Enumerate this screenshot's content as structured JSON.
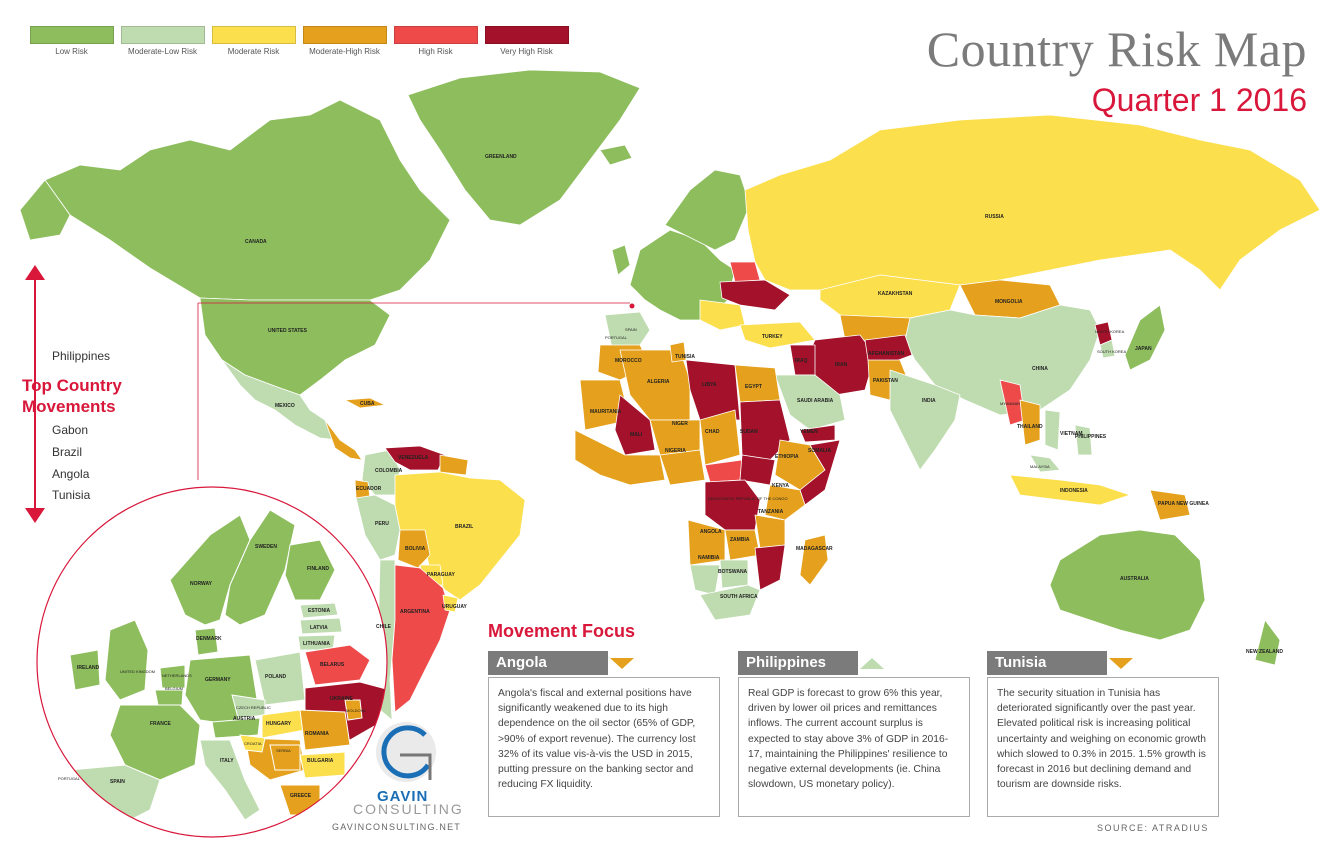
{
  "legend": [
    {
      "label": "Low Risk",
      "color": "#8dbd5d"
    },
    {
      "label": "Moderate-Low Risk",
      "color": "#bfdcb0"
    },
    {
      "label": "Moderate Risk",
      "color": "#fcdf4d"
    },
    {
      "label": "Moderate-High Risk",
      "color": "#e5a11d"
    },
    {
      "label": "High Risk",
      "color": "#ee4a4a"
    },
    {
      "label": "Very High Risk",
      "color": "#a3122a"
    }
  ],
  "title": "Country Risk Map",
  "subtitle": "Quarter 1  2016",
  "top_movements": {
    "title_line1": "Top Country",
    "title_line2": "Movements",
    "up": [
      "Philippines"
    ],
    "down": [
      "Gabon",
      "Brazil",
      "Angola",
      "Tunisia"
    ]
  },
  "movement_focus": {
    "title": "Movement Focus",
    "panels": [
      {
        "country": "Angola",
        "direction": "down",
        "text": "Angola's fiscal and external positions have significantly weakened due to its high dependence on the oil sector (65% of GDP, >90% of export revenue). The currency lost 32% of its value vis-à-vis the USD in 2015, putting pressure on the banking sector and reducing FX liquidity."
      },
      {
        "country": "Philippines",
        "direction": "up",
        "text": "Real GDP is forecast to grow 6% this year, driven by lower oil prices and remittances inflows. The current account surplus is expected to stay above 3% of GDP in 2016-17, maintaining the Philippines' resilience to negative external developments (ie. China slowdown, US monetary policy)."
      },
      {
        "country": "Tunisia",
        "direction": "down",
        "text": "The security situation in Tunisia has deteriorated significantly over the past year. Elevated political risk is increasing political uncertainty and weighing on economic growth which slowed to 0.3% in 2015. 1.5% growth is forecast in 2016 but declining demand and tourism are downside risks."
      }
    ]
  },
  "source": "SOURCE: ATRADIUS",
  "logo": {
    "name": "GAVIN",
    "sub": "CONSULTING",
    "url": "GAVINCONSULTING.NET"
  },
  "map_labels": {
    "canada": "CANADA",
    "greenland": "GREENLAND",
    "usa": "UNITED STATES",
    "mexico": "MEXICO",
    "cuba": "CUBA",
    "colombia": "COLOMBIA",
    "venezuela": "VENEZUELA",
    "brazil": "BRAZIL",
    "peru": "PERU",
    "bolivia": "BOLIVIA",
    "chile": "CHILE",
    "argentina": "ARGENTINA",
    "uruguay": "URUGUAY",
    "paraguay": "PARAGUAY",
    "ecuador": "ECUADOR",
    "russia": "RUSSIA",
    "kazakhstan": "KAZAKHSTAN",
    "mongolia": "MONGOLIA",
    "china": "CHINA",
    "india": "INDIA",
    "iran": "IRAN",
    "iraq": "IRAQ",
    "turkey": "TURKEY",
    "saudi": "SAUDI ARABIA",
    "pakistan": "PAKISTAN",
    "afghanistan": "AFGHANISTAN",
    "japan": "JAPAN",
    "skorea": "SOUTH KOREA",
    "nkorea": "NORTH KOREA",
    "vietnam": "VIETNAM",
    "thailand": "THAILAND",
    "myanmar": "MYANMAR",
    "indonesia": "INDONESIA",
    "philippines": "PHILIPPINES",
    "malaysia": "MALAYSIA",
    "png": "PAPUA NEW GUINEA",
    "australia": "AUSTRALIA",
    "nz": "NEW ZEALAND",
    "algeria": "ALGERIA",
    "libya": "LIBYA",
    "egypt": "EGYPT",
    "mali": "MALI",
    "niger": "NIGER",
    "chad": "CHAD",
    "sudan": "SUDAN",
    "nigeria": "NIGERIA",
    "ethiopia": "ETHIOPIA",
    "drc": "DEMOCRATIC REPUBLIC OF THE CONGO",
    "kenya": "KENYA",
    "tanzania": "TANZANIA",
    "angola": "ANGOLA",
    "zambia": "ZAMBIA",
    "namibia": "NAMIBIA",
    "botswana": "BOTSWANA",
    "safrica": "SOUTH AFRICA",
    "madagascar": "MADAGASCAR",
    "morocco": "MOROCCO",
    "tunisia": "TUNISIA",
    "mauritania": "MAURITANIA",
    "somalia": "SOMALIA",
    "yemen": "YEMEN",
    "spain": "SPAIN",
    "portugal": "PORTUGAL",
    "sweden": "SWEDEN",
    "norway": "NORWAY",
    "finland": "FINLAND",
    "estonia": "ESTONIA",
    "latvia": "LATVIA",
    "lithuania": "LITHUANIA",
    "belarus": "BELARUS",
    "ukraine": "UKRAINE",
    "poland": "POLAND",
    "germany": "GERMANY",
    "france": "FRANCE",
    "uk": "UNITED KINGDOM",
    "ireland": "IRELAND",
    "denmark": "DENMARK",
    "netherlands": "NETHERLANDS",
    "belgium": "BELGIUM",
    "czech": "CZECH REPUBLIC",
    "austria": "AUSTRIA",
    "hungary": "HUNGARY",
    "romania": "ROMANIA",
    "bulgaria": "BULGARIA",
    "italy": "ITALY",
    "greece": "GREECE",
    "moldova": "MOLDOVA",
    "serbia": "SERBIA",
    "croatia": "CROATIA"
  }
}
